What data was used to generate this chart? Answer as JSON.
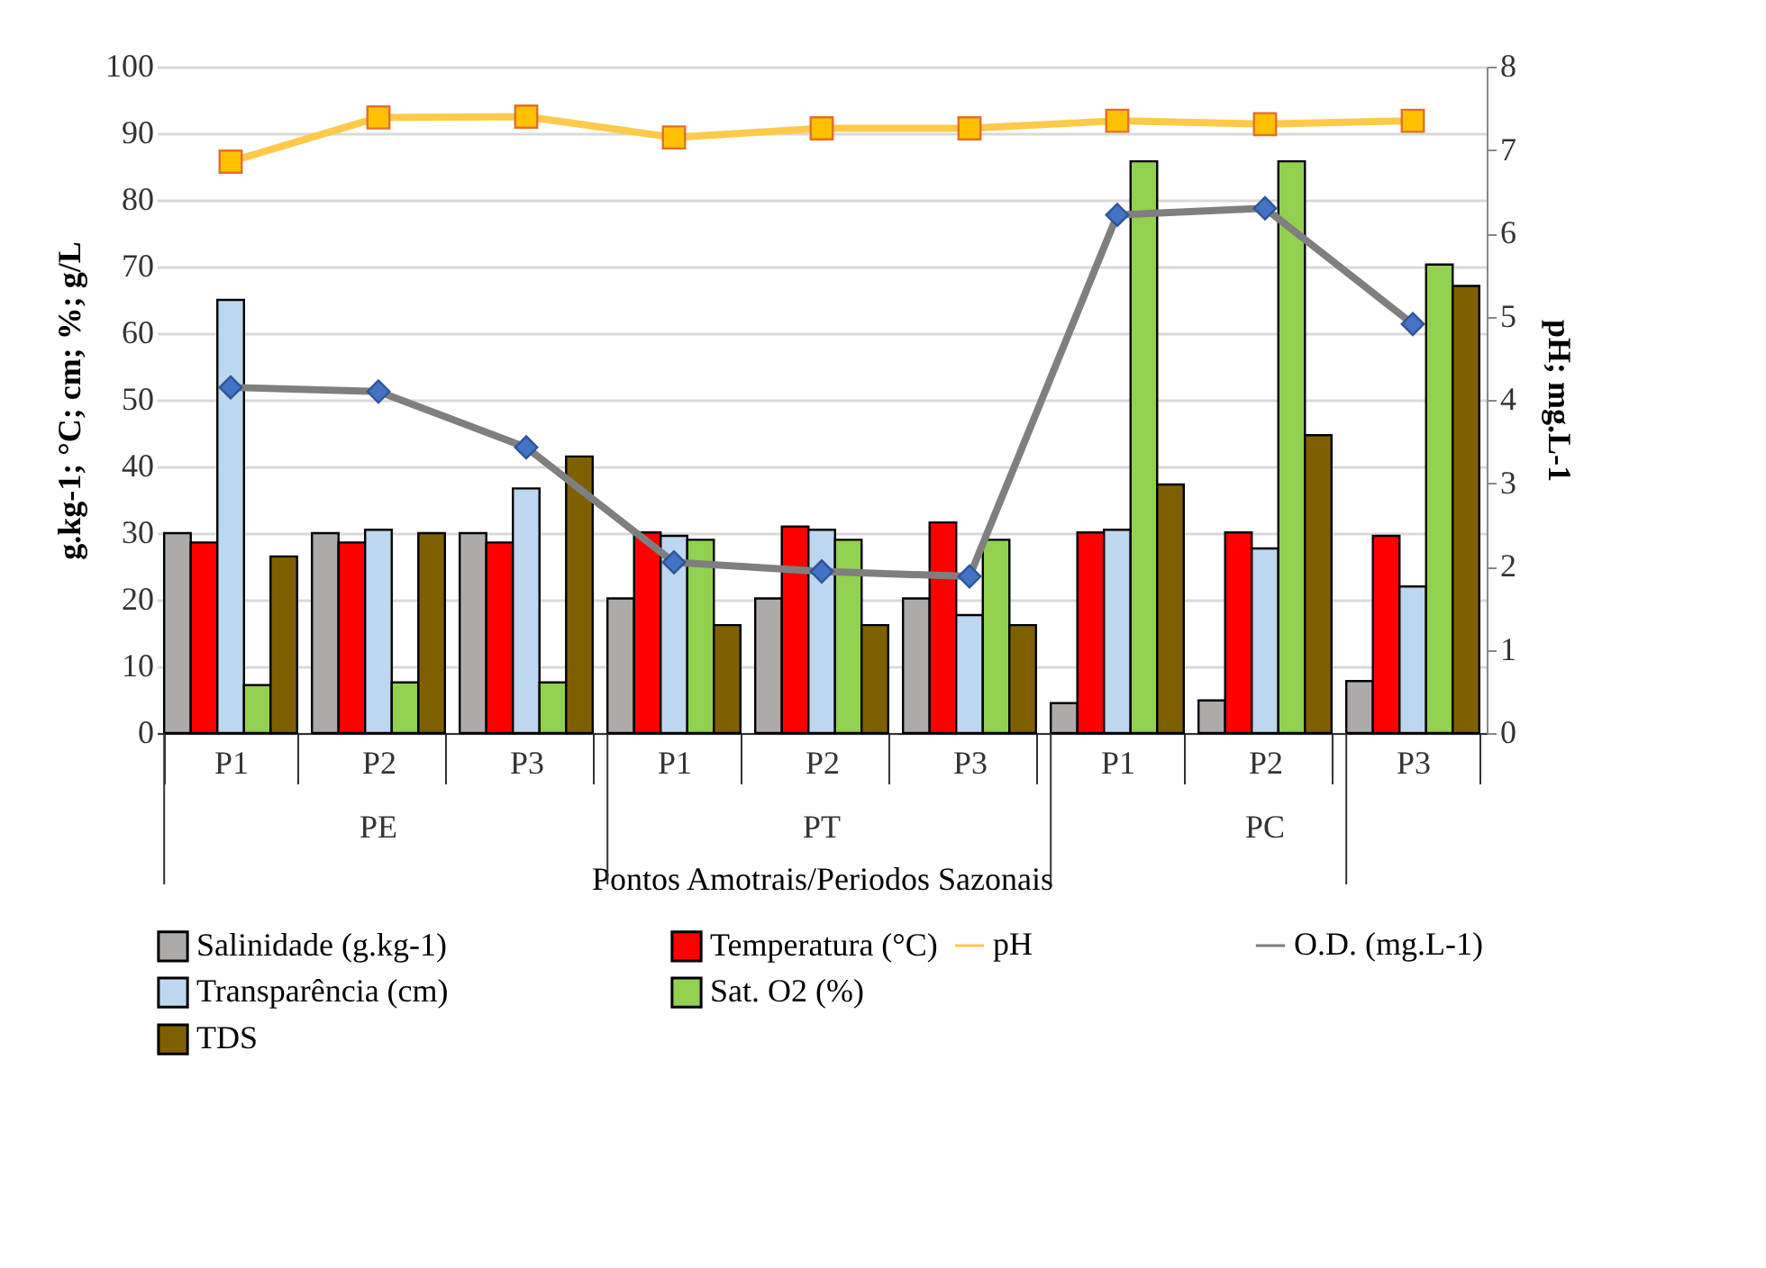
{
  "chart_data": {
    "type": "bar",
    "xlabel": "Pontos Amotrais/Periodos Sazonais",
    "ylabel": "g.kg-1; °C; cm; %; g/L",
    "y2label": "pH; mg.L-1",
    "categories": [
      "P1",
      "P2",
      "P3",
      "P1",
      "P2",
      "P3",
      "P1",
      "P2",
      "P3"
    ],
    "annotations": [
      "PE",
      "PT",
      "PC"
    ],
    "series": [
      {
        "name": "Salinidade (g.kg-1)",
        "color": "#aeaaaa",
        "values": [
          30,
          30,
          30,
          20.2,
          20.2,
          20.2,
          4.5,
          4.9,
          7.8
        ]
      },
      {
        "name": "Temperatura (°C)",
        "color": "#ff0000",
        "values": [
          28.6,
          28.6,
          28.6,
          30.1,
          31,
          31.6,
          30.1,
          30.1,
          29.6
        ]
      },
      {
        "name": "Transparência (cm)",
        "color": "#bdd7ee",
        "values": [
          65,
          30.5,
          36.7,
          29.6,
          30.5,
          17.7,
          30.5,
          27.7,
          22
        ]
      },
      {
        "name": "Sat. O2 (%)",
        "color": "#92d050",
        "values": [
          7.2,
          7.6,
          7.6,
          29,
          29,
          29,
          85.8,
          85.8,
          70.3
        ]
      },
      {
        "name": "TDS",
        "color": "#7f6000",
        "values": [
          26.5,
          30,
          41.5,
          16.2,
          16.2,
          16.2,
          37.3,
          44.7,
          67.1
        ]
      },
      {
        "name": "pH",
        "type": "line",
        "axis": "y2",
        "marker": "square",
        "color": "#ffc94a",
        "values": [
          6.86,
          7.39,
          7.4,
          7.15,
          7.26,
          7.26,
          7.35,
          7.31,
          7.35
        ]
      },
      {
        "name": "O.D. (mg.L-1)",
        "type": "line",
        "axis": "y2",
        "marker": "diamond",
        "color": "#7f7f7f",
        "values": [
          4.15,
          4.1,
          3.43,
          2.05,
          1.94,
          1.88,
          6.22,
          6.3,
          4.91
        ]
      }
    ],
    "ylim": [
      0,
      100
    ],
    "yticks": [
      0,
      10,
      20,
      30,
      40,
      50,
      60,
      70,
      80,
      90,
      100
    ],
    "y2lim": [
      0,
      8
    ],
    "y2ticks": [
      0,
      1,
      2,
      3,
      4,
      5,
      6,
      7,
      8
    ],
    "grid": "y",
    "legend": "bottom"
  }
}
